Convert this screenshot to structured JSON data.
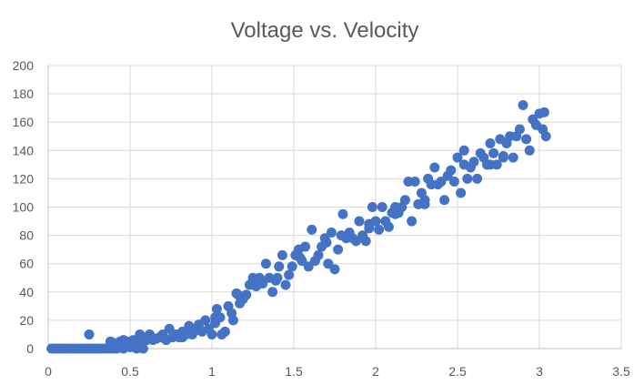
{
  "chart_data": {
    "type": "scatter",
    "title": "Voltage vs. Velocity",
    "xlabel": "",
    "ylabel": "",
    "xlim": [
      0,
      3.5
    ],
    "ylim": [
      0,
      200
    ],
    "x_ticks": [
      "0",
      "0.5",
      "1",
      "1.5",
      "2",
      "2.5",
      "3",
      "3.5"
    ],
    "y_ticks": [
      "0",
      "20",
      "40",
      "60",
      "80",
      "100",
      "120",
      "140",
      "160",
      "180",
      "200"
    ],
    "grid": true,
    "legend": "none",
    "marker_color": "#4472c4",
    "series": [
      {
        "points": [
          [
            0.02,
            0
          ],
          [
            0.04,
            0
          ],
          [
            0.06,
            0
          ],
          [
            0.08,
            0
          ],
          [
            0.1,
            0
          ],
          [
            0.12,
            0
          ],
          [
            0.14,
            0
          ],
          [
            0.16,
            0
          ],
          [
            0.18,
            0
          ],
          [
            0.2,
            0
          ],
          [
            0.22,
            0
          ],
          [
            0.24,
            0
          ],
          [
            0.26,
            0
          ],
          [
            0.28,
            0
          ],
          [
            0.3,
            0
          ],
          [
            0.32,
            0
          ],
          [
            0.34,
            0
          ],
          [
            0.36,
            0
          ],
          [
            0.38,
            0
          ],
          [
            0.4,
            0
          ],
          [
            0.42,
            0
          ],
          [
            0.44,
            1
          ],
          [
            0.46,
            0
          ],
          [
            0.48,
            2
          ],
          [
            0.5,
            1
          ],
          [
            0.52,
            3
          ],
          [
            0.54,
            0
          ],
          [
            0.58,
            0
          ],
          [
            0.25,
            10
          ],
          [
            0.38,
            5
          ],
          [
            0.4,
            4
          ],
          [
            0.44,
            5
          ],
          [
            0.46,
            6
          ],
          [
            0.48,
            5
          ],
          [
            0.5,
            5
          ],
          [
            0.52,
            6
          ],
          [
            0.55,
            4
          ],
          [
            0.56,
            10
          ],
          [
            0.58,
            8
          ],
          [
            0.6,
            6
          ],
          [
            0.62,
            10
          ],
          [
            0.64,
            6
          ],
          [
            0.66,
            7
          ],
          [
            0.68,
            8
          ],
          [
            0.7,
            10
          ],
          [
            0.72,
            6
          ],
          [
            0.74,
            14
          ],
          [
            0.76,
            8
          ],
          [
            0.78,
            10
          ],
          [
            0.8,
            8
          ],
          [
            0.82,
            12
          ],
          [
            0.84,
            10
          ],
          [
            0.86,
            16
          ],
          [
            0.88,
            10
          ],
          [
            0.9,
            13
          ],
          [
            0.92,
            17
          ],
          [
            0.94,
            12
          ],
          [
            0.96,
            20
          ],
          [
            0.98,
            14
          ],
          [
            1.0,
            10
          ],
          [
            1.02,
            18
          ],
          [
            1.03,
            28
          ],
          [
            1.05,
            22
          ],
          [
            1.06,
            10
          ],
          [
            1.08,
            12
          ],
          [
            1.1,
            30
          ],
          [
            1.12,
            25
          ],
          [
            1.13,
            20
          ],
          [
            1.15,
            39
          ],
          [
            1.17,
            32
          ],
          [
            1.19,
            35
          ],
          [
            1.21,
            38
          ],
          [
            1.23,
            45
          ],
          [
            1.25,
            50
          ],
          [
            1.27,
            44
          ],
          [
            1.29,
            50
          ],
          [
            1.31,
            46
          ],
          [
            1.33,
            60
          ],
          [
            1.35,
            50
          ],
          [
            1.37,
            40
          ],
          [
            1.39,
            48
          ],
          [
            1.41,
            58
          ],
          [
            1.43,
            66
          ],
          [
            1.45,
            45
          ],
          [
            1.47,
            52
          ],
          [
            1.49,
            58
          ],
          [
            1.51,
            66
          ],
          [
            1.53,
            70
          ],
          [
            1.55,
            62
          ],
          [
            1.57,
            72
          ],
          [
            1.59,
            58
          ],
          [
            1.61,
            84
          ],
          [
            1.63,
            62
          ],
          [
            1.65,
            66
          ],
          [
            1.67,
            72
          ],
          [
            1.69,
            78
          ],
          [
            1.71,
            60
          ],
          [
            1.73,
            82
          ],
          [
            1.75,
            56
          ],
          [
            1.77,
            70
          ],
          [
            1.79,
            80
          ],
          [
            1.8,
            95
          ],
          [
            1.82,
            78
          ],
          [
            1.84,
            82
          ],
          [
            1.86,
            78
          ],
          [
            1.88,
            76
          ],
          [
            1.9,
            90
          ],
          [
            1.92,
            80
          ],
          [
            1.94,
            76
          ],
          [
            1.96,
            85
          ],
          [
            1.98,
            100
          ],
          [
            2.0,
            90
          ],
          [
            2.02,
            84
          ],
          [
            2.04,
            100
          ],
          [
            2.06,
            90
          ],
          [
            2.08,
            86
          ],
          [
            2.1,
            96
          ],
          [
            2.12,
            100
          ],
          [
            2.14,
            96
          ],
          [
            2.16,
            100
          ],
          [
            2.18,
            105
          ],
          [
            2.2,
            118
          ],
          [
            2.22,
            90
          ],
          [
            2.24,
            118
          ],
          [
            2.26,
            102
          ],
          [
            2.28,
            110
          ],
          [
            2.3,
            105
          ],
          [
            2.32,
            120
          ],
          [
            2.34,
            116
          ],
          [
            2.36,
            128
          ],
          [
            2.38,
            116
          ],
          [
            2.4,
            118
          ],
          [
            2.42,
            105
          ],
          [
            2.44,
            122
          ],
          [
            2.46,
            126
          ],
          [
            2.48,
            118
          ],
          [
            2.5,
            135
          ],
          [
            2.52,
            110
          ],
          [
            2.54,
            140
          ],
          [
            2.56,
            120
          ],
          [
            2.58,
            128
          ],
          [
            2.6,
            132
          ],
          [
            2.62,
            120
          ],
          [
            2.64,
            138
          ],
          [
            2.66,
            135
          ],
          [
            2.68,
            130
          ],
          [
            2.7,
            145
          ],
          [
            2.72,
            138
          ],
          [
            2.74,
            130
          ],
          [
            2.76,
            148
          ],
          [
            2.78,
            136
          ],
          [
            2.8,
            145
          ],
          [
            2.82,
            150
          ],
          [
            2.84,
            135
          ],
          [
            2.86,
            150
          ],
          [
            2.88,
            155
          ],
          [
            2.9,
            172
          ],
          [
            2.92,
            148
          ],
          [
            2.94,
            140
          ],
          [
            2.96,
            162
          ],
          [
            2.98,
            158
          ],
          [
            3.0,
            166
          ],
          [
            3.02,
            155
          ],
          [
            3.04,
            150
          ],
          [
            3.03,
            167
          ],
          [
            2.78,
            135
          ],
          [
            2.7,
            130
          ],
          [
            2.54,
            130
          ],
          [
            2.3,
            102
          ],
          [
            2.12,
            95
          ],
          [
            1.96,
            88
          ],
          [
            1.7,
            75
          ],
          [
            1.54,
            64
          ],
          [
            1.4,
            50
          ],
          [
            1.28,
            48
          ],
          [
            1.16,
            38
          ],
          [
            1.02,
            22
          ],
          [
            0.92,
            14
          ],
          [
            0.82,
            8
          ]
        ]
      }
    ]
  }
}
